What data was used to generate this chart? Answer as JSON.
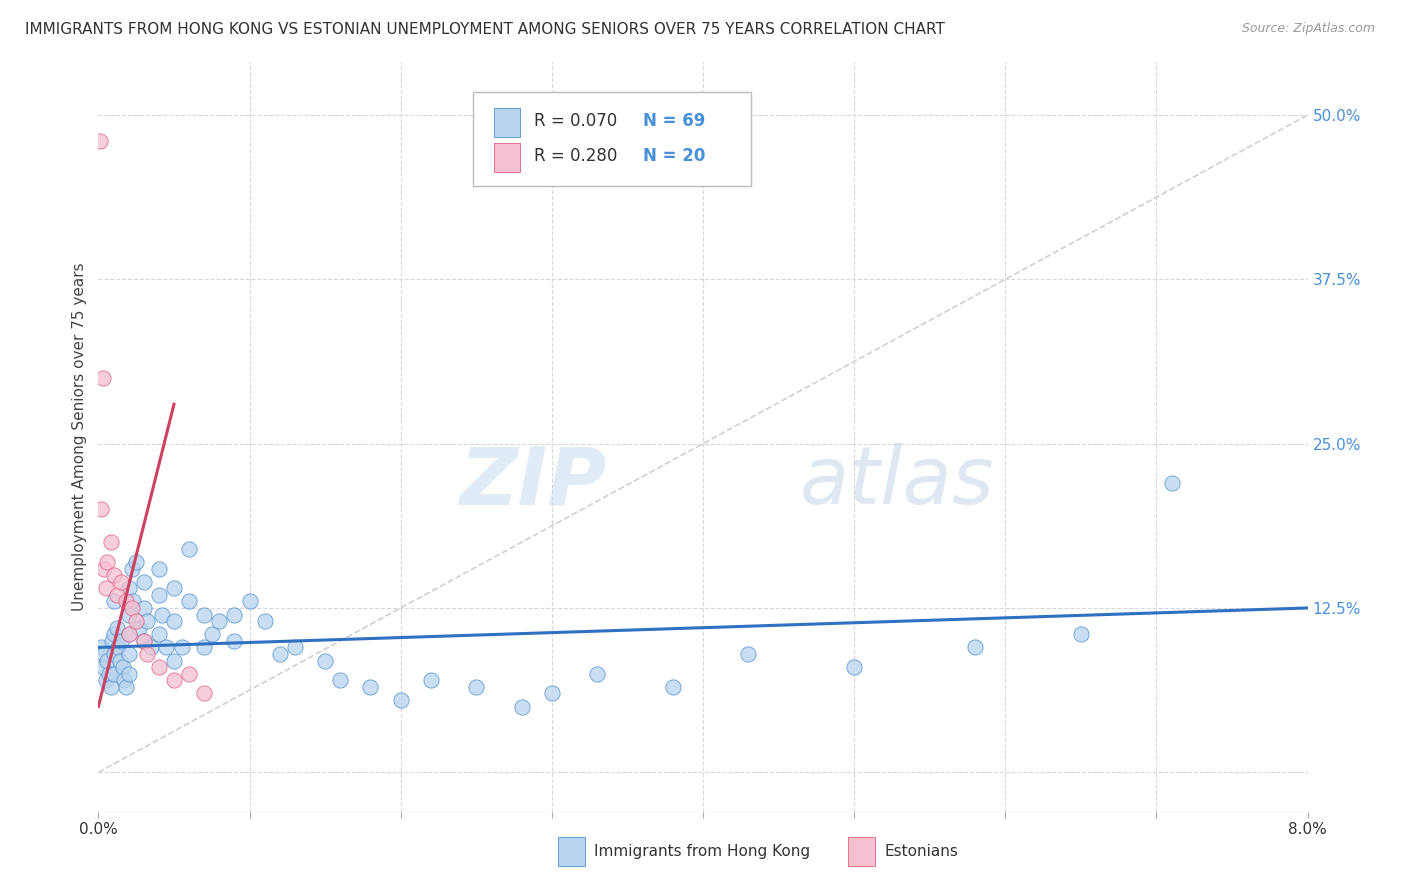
{
  "title": "IMMIGRANTS FROM HONG KONG VS ESTONIAN UNEMPLOYMENT AMONG SENIORS OVER 75 YEARS CORRELATION CHART",
  "source": "Source: ZipAtlas.com",
  "ylabel": "Unemployment Among Seniors over 75 years",
  "x_min": 0.0,
  "x_max": 0.08,
  "y_min": -0.03,
  "y_max": 0.54,
  "y_ticks_right": [
    0.0,
    0.125,
    0.25,
    0.375,
    0.5
  ],
  "y_tick_labels_right": [
    "",
    "12.5%",
    "25.0%",
    "37.5%",
    "50.0%"
  ],
  "legend_entries": [
    {
      "label": "Immigrants from Hong Kong",
      "color": "#b8d4f0",
      "edge": "#5090d0",
      "r": "0.070",
      "n": "69"
    },
    {
      "label": "Estonians",
      "color": "#f5c0d0",
      "edge": "#e06080",
      "r": "0.280",
      "n": "20"
    }
  ],
  "watermark": "ZIPatlas",
  "blue_line": {
    "x0": 0.0,
    "y0": 0.095,
    "x1": 0.08,
    "y1": 0.125
  },
  "pink_line": {
    "x0": 0.0,
    "y0": 0.05,
    "x1": 0.005,
    "y1": 0.28
  },
  "series_blue_x": [
    0.0002,
    0.0003,
    0.0004,
    0.0005,
    0.0006,
    0.0007,
    0.0008,
    0.0009,
    0.001,
    0.001,
    0.001,
    0.001,
    0.0012,
    0.0013,
    0.0014,
    0.0015,
    0.0016,
    0.0017,
    0.0018,
    0.002,
    0.002,
    0.002,
    0.002,
    0.002,
    0.0022,
    0.0023,
    0.0025,
    0.0027,
    0.003,
    0.003,
    0.003,
    0.0032,
    0.0035,
    0.004,
    0.004,
    0.004,
    0.0042,
    0.0045,
    0.005,
    0.005,
    0.005,
    0.0055,
    0.006,
    0.006,
    0.007,
    0.007,
    0.0075,
    0.008,
    0.009,
    0.009,
    0.01,
    0.011,
    0.012,
    0.013,
    0.015,
    0.016,
    0.018,
    0.02,
    0.022,
    0.025,
    0.028,
    0.03,
    0.033,
    0.038,
    0.043,
    0.05,
    0.058,
    0.065,
    0.071
  ],
  "series_blue_y": [
    0.095,
    0.08,
    0.09,
    0.07,
    0.085,
    0.075,
    0.065,
    0.1,
    0.13,
    0.105,
    0.09,
    0.075,
    0.11,
    0.095,
    0.085,
    0.1,
    0.08,
    0.07,
    0.065,
    0.14,
    0.12,
    0.105,
    0.09,
    0.075,
    0.155,
    0.13,
    0.16,
    0.11,
    0.145,
    0.125,
    0.1,
    0.115,
    0.095,
    0.155,
    0.135,
    0.105,
    0.12,
    0.095,
    0.14,
    0.115,
    0.085,
    0.095,
    0.17,
    0.13,
    0.12,
    0.095,
    0.105,
    0.115,
    0.12,
    0.1,
    0.13,
    0.115,
    0.09,
    0.095,
    0.085,
    0.07,
    0.065,
    0.055,
    0.07,
    0.065,
    0.05,
    0.06,
    0.075,
    0.065,
    0.09,
    0.08,
    0.095,
    0.105,
    0.22
  ],
  "series_pink_x": [
    0.0001,
    0.0002,
    0.0003,
    0.0004,
    0.0005,
    0.0006,
    0.0008,
    0.001,
    0.0012,
    0.0015,
    0.0018,
    0.002,
    0.0022,
    0.0025,
    0.003,
    0.0032,
    0.004,
    0.005,
    0.006,
    0.007
  ],
  "series_pink_y": [
    0.48,
    0.2,
    0.3,
    0.155,
    0.14,
    0.16,
    0.175,
    0.15,
    0.135,
    0.145,
    0.13,
    0.105,
    0.125,
    0.115,
    0.1,
    0.09,
    0.08,
    0.07,
    0.075,
    0.06
  ],
  "blue_line_color": "#3070c0",
  "pink_line_color": "#d04060",
  "diagonal_color": "#d0d0d0",
  "grid_color": "#d8d8d8",
  "bg_color": "#ffffff"
}
